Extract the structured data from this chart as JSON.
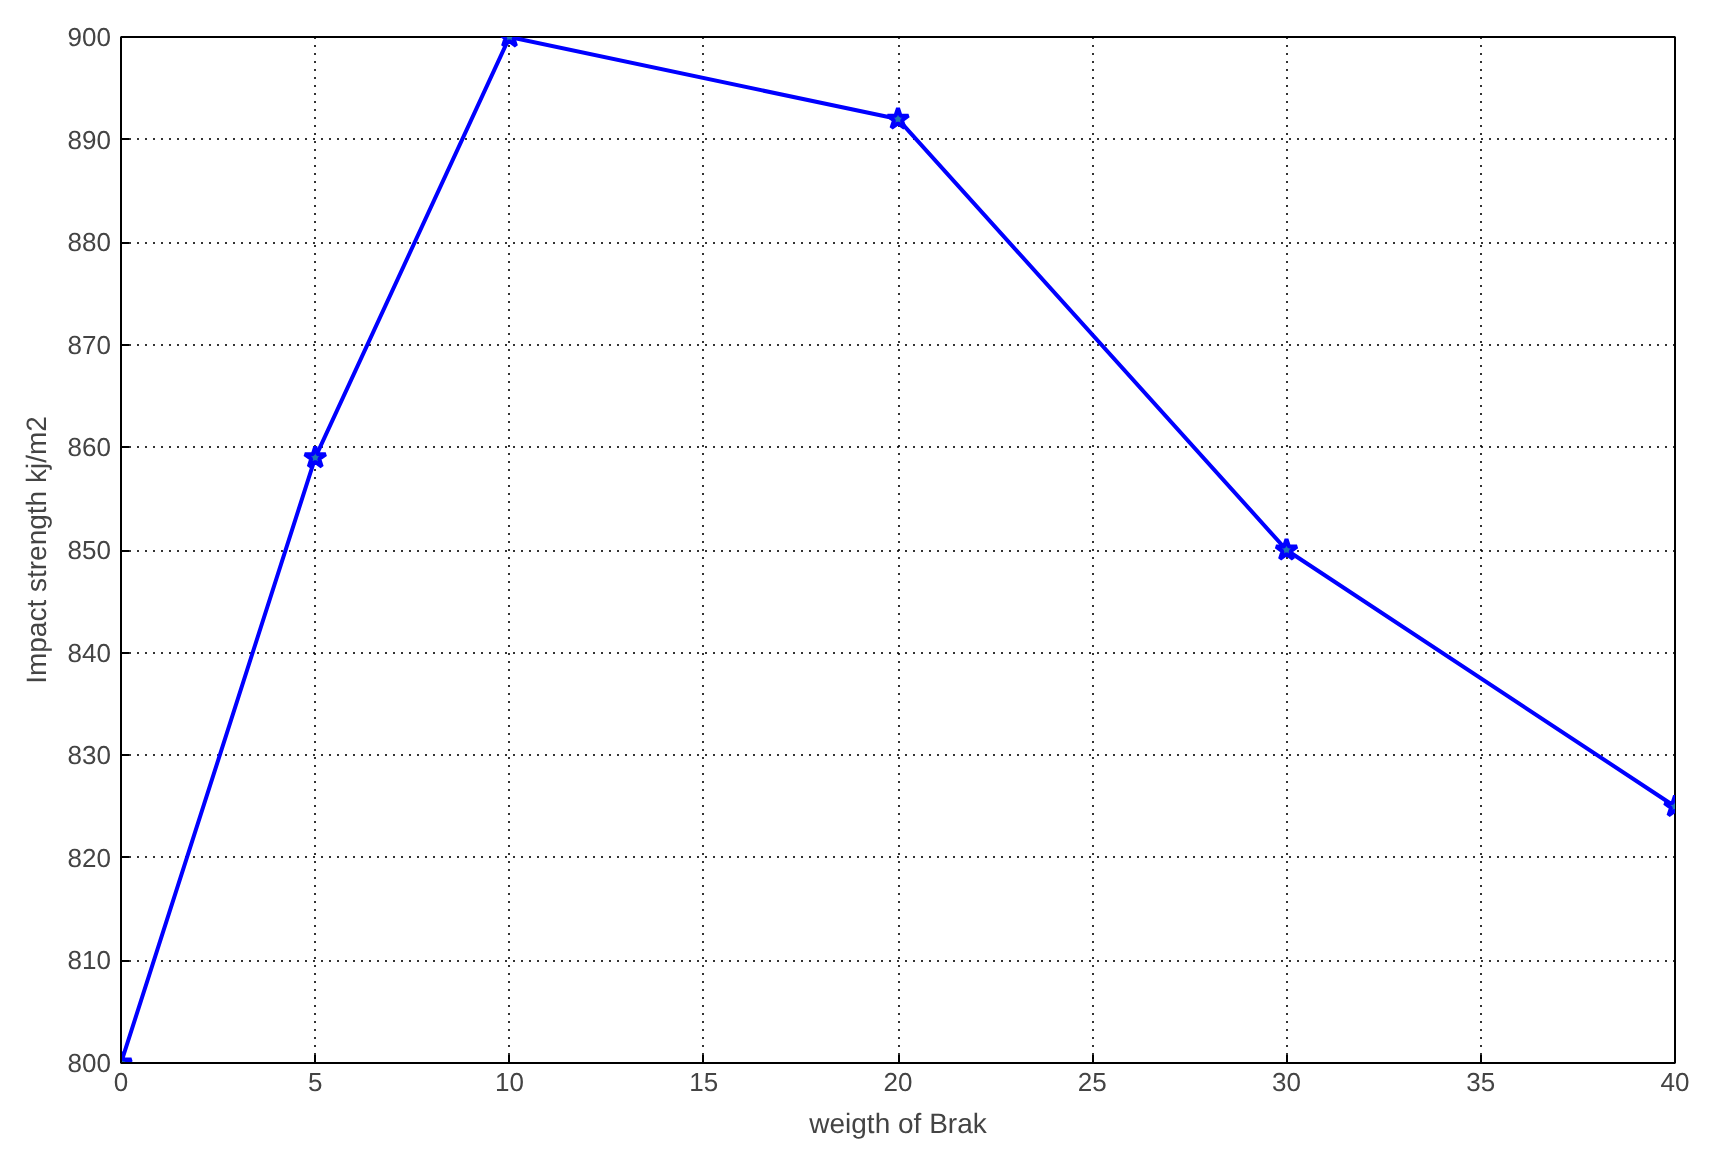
{
  "chart_data": {
    "type": "line",
    "xlabel": "weigth of Brak",
    "ylabel": "Impact strength kj/m2",
    "x": [
      0,
      5,
      10,
      20,
      30,
      40
    ],
    "series": [
      {
        "color": "#0000ff",
        "values": [
          800,
          859,
          900,
          892,
          850,
          825
        ]
      }
    ],
    "xlim": [
      0,
      40
    ],
    "ylim": [
      800,
      900
    ],
    "xticks": [
      0,
      5,
      10,
      15,
      20,
      25,
      30,
      35,
      40
    ],
    "yticks": [
      800,
      810,
      820,
      830,
      840,
      850,
      860,
      870,
      880,
      890,
      900
    ],
    "grid": true,
    "marker": "star",
    "line_style": "solid"
  }
}
